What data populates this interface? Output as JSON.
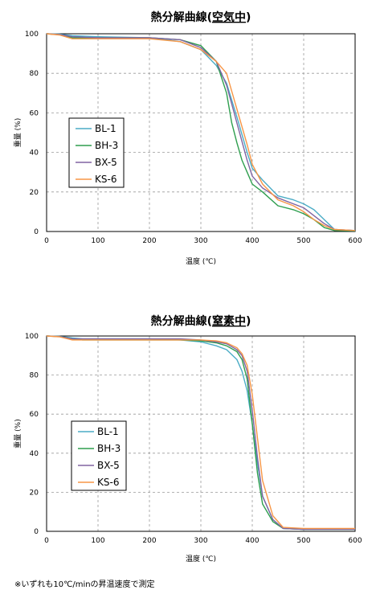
{
  "chart_data": [
    {
      "type": "line",
      "title_main": "熱分解曲線(",
      "title_underlined": "空気中",
      "title_end": ")",
      "xlabel": "温度 (℃)",
      "ylabel": "重量 (%)",
      "xlim": [
        0,
        600
      ],
      "ylim": [
        0,
        100
      ],
      "x_ticks": [
        0,
        100,
        200,
        300,
        400,
        500,
        600
      ],
      "y_ticks": [
        0,
        20,
        40,
        60,
        80,
        100
      ],
      "grid": true,
      "legend_position": "left",
      "series": [
        {
          "name": "BL-1",
          "color": "#4bacc6",
          "x": [
            0,
            25,
            50,
            100,
            200,
            260,
            300,
            330,
            350,
            370,
            390,
            400,
            420,
            450,
            480,
            500,
            520,
            540,
            560,
            600
          ],
          "y": [
            100,
            99.8,
            99,
            98.5,
            98,
            96,
            92,
            84,
            75,
            58,
            40,
            32,
            26,
            18,
            16,
            14,
            11,
            6,
            1,
            0.5
          ]
        },
        {
          "name": "BH-3",
          "color": "#2e9e4e",
          "x": [
            0,
            25,
            50,
            100,
            200,
            260,
            300,
            330,
            350,
            360,
            370,
            380,
            390,
            400,
            420,
            450,
            480,
            500,
            520,
            540,
            560,
            600
          ],
          "y": [
            100,
            99.5,
            98,
            98,
            98,
            97,
            94,
            86,
            70,
            55,
            45,
            36,
            30,
            24,
            20,
            13,
            11,
            9,
            6,
            2,
            0.5,
            0.3
          ]
        },
        {
          "name": "BX-5",
          "color": "#8064a2",
          "x": [
            0,
            25,
            50,
            100,
            200,
            260,
            300,
            330,
            350,
            370,
            390,
            400,
            420,
            450,
            480,
            500,
            520,
            540,
            560,
            600
          ],
          "y": [
            100,
            99.6,
            98.5,
            98,
            98,
            97,
            93,
            86,
            74,
            55,
            36,
            28,
            22,
            17,
            14,
            12,
            8,
            4,
            1,
            0.5
          ]
        },
        {
          "name": "KS-6",
          "color": "#f79646",
          "x": [
            0,
            25,
            50,
            100,
            200,
            260,
            300,
            330,
            350,
            370,
            390,
            400,
            420,
            450,
            480,
            500,
            520,
            540,
            560,
            600
          ],
          "y": [
            100,
            99.4,
            97.5,
            97.5,
            97.5,
            96,
            92,
            86,
            80,
            62,
            44,
            34,
            24,
            16,
            13,
            10,
            6,
            3,
            1,
            0.5
          ]
        }
      ]
    },
    {
      "type": "line",
      "title_main": "熱分解曲線(",
      "title_underlined": "窒素中",
      "title_end": ")",
      "xlabel": "温度 (℃)",
      "ylabel": "重量 (%)",
      "xlim": [
        0,
        600
      ],
      "ylim": [
        0,
        100
      ],
      "x_ticks": [
        0,
        100,
        200,
        300,
        400,
        500,
        600
      ],
      "y_ticks": [
        0,
        20,
        40,
        60,
        80,
        100
      ],
      "grid": true,
      "legend_position": "left",
      "series": [
        {
          "name": "BL-1",
          "color": "#4bacc6",
          "x": [
            0,
            25,
            50,
            70,
            100,
            200,
            260,
            300,
            330,
            350,
            370,
            380,
            390,
            400,
            410,
            420,
            440,
            460,
            500,
            600
          ],
          "y": [
            100,
            99.8,
            99,
            98.5,
            98.5,
            98.5,
            98,
            97,
            95,
            93,
            88,
            82,
            72,
            55,
            35,
            18,
            6,
            1.5,
            1,
            1
          ]
        },
        {
          "name": "BH-3",
          "color": "#2e9e4e",
          "x": [
            0,
            25,
            50,
            70,
            100,
            200,
            260,
            300,
            330,
            350,
            370,
            380,
            390,
            400,
            410,
            420,
            440,
            460,
            500,
            600
          ],
          "y": [
            100,
            99.7,
            98.5,
            98,
            98,
            98,
            98,
            97.5,
            96.5,
            95,
            92,
            88,
            78,
            55,
            30,
            14,
            5,
            1.5,
            1,
            1
          ]
        },
        {
          "name": "BX-5",
          "color": "#8064a2",
          "x": [
            0,
            25,
            50,
            70,
            100,
            200,
            260,
            300,
            330,
            350,
            370,
            380,
            390,
            400,
            410,
            420,
            440,
            460,
            500,
            600
          ],
          "y": [
            100,
            99.7,
            98.5,
            98.5,
            98.5,
            98.5,
            98.5,
            98,
            97,
            96,
            93,
            90,
            82,
            62,
            38,
            18,
            6,
            1.5,
            1,
            1
          ]
        },
        {
          "name": "KS-6",
          "color": "#f79646",
          "x": [
            0,
            25,
            50,
            70,
            100,
            200,
            260,
            300,
            330,
            350,
            370,
            380,
            390,
            400,
            410,
            420,
            440,
            460,
            500,
            600
          ],
          "y": [
            100,
            99.6,
            98,
            98,
            98,
            98,
            98,
            98,
            97.5,
            96.5,
            94,
            91,
            85,
            70,
            48,
            26,
            8,
            2,
            1.5,
            1.5
          ]
        }
      ]
    }
  ],
  "footnote": "※いずれも10℃/minの昇温速度で測定"
}
